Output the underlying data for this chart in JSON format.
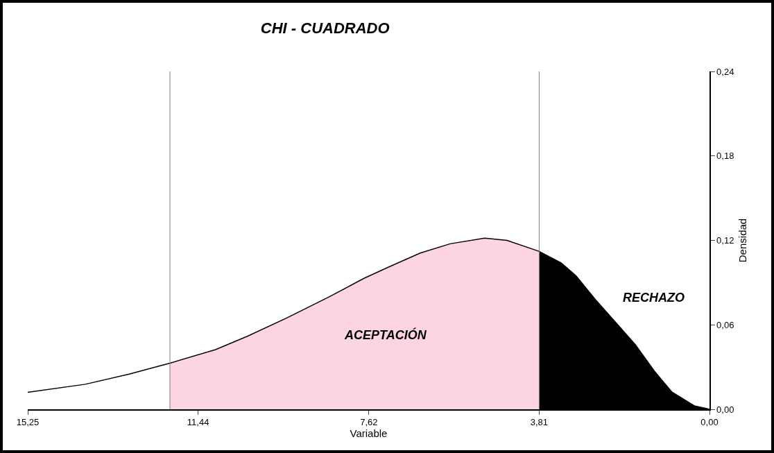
{
  "chart_data": {
    "type": "line",
    "title": "CHI - CUADRADO",
    "xlabel": "Variable",
    "ylabel": "Densidad",
    "xlim": [
      15.25,
      0
    ],
    "xticks": [
      {
        "value": 15.25,
        "label": "15,25"
      },
      {
        "value": 11.44,
        "label": "11,44"
      },
      {
        "value": 7.62,
        "label": "7,62"
      },
      {
        "value": 3.81,
        "label": "3,81"
      },
      {
        "value": 0,
        "label": "0,00"
      }
    ],
    "ylim": [
      0,
      0.24
    ],
    "yticks": [
      {
        "value": 0,
        "label": "0,00"
      },
      {
        "value": 0.06,
        "label": "0,06"
      },
      {
        "value": 0.12,
        "label": "0,12"
      },
      {
        "value": 0.18,
        "label": "0,18"
      },
      {
        "value": 0.24,
        "label": "0,24"
      }
    ],
    "marker": "none",
    "line_style": "solid",
    "series": [
      {
        "type": "area",
        "color": "#fcd4e2",
        "x": [
          12.07,
          11.05,
          10.33,
          9.45,
          8.5,
          7.73,
          7.18,
          6.47,
          5.8,
          5.03,
          4.53,
          3.81
        ],
        "values": [
          0.0328,
          0.0424,
          0.052,
          0.065,
          0.08,
          0.093,
          0.101,
          0.111,
          0.1176,
          0.1216,
          0.12,
          0.1122
        ]
      },
      {
        "type": "area",
        "color": "#000000",
        "x": [
          3.81,
          3.32,
          2.99,
          2.54,
          2.05,
          1.66,
          1.23,
          0.84,
          0.34,
          0.06,
          0
        ],
        "values": [
          0.1122,
          0.104,
          0.095,
          0.0775,
          0.06,
          0.046,
          0.027,
          0.0122,
          0.0025,
          0.0005,
          0
        ]
      },
      {
        "type": "line",
        "color": "#000000",
        "x": [
          15.25,
          13.96,
          12.98,
          12.07,
          11.05,
          10.33,
          9.45,
          8.5,
          7.73,
          7.18,
          6.47,
          5.8,
          5.03,
          4.53,
          3.81,
          3.32,
          2.99,
          2.54,
          2.05,
          1.66,
          1.23,
          0.84,
          0.34,
          0.06,
          0
        ],
        "values": [
          0.0121,
          0.0178,
          0.025,
          0.0328,
          0.0424,
          0.052,
          0.065,
          0.08,
          0.093,
          0.101,
          0.111,
          0.1176,
          0.1216,
          0.12,
          0.1122,
          0.104,
          0.095,
          0.0775,
          0.06,
          0.046,
          0.027,
          0.0122,
          0.0025,
          0.0005,
          0
        ]
      }
    ],
    "ref_lines": [
      {
        "axis": "x",
        "value": 12.07,
        "color": "#7f7f7f"
      },
      {
        "axis": "x",
        "value": 3.81,
        "color": "#7f7f7f"
      }
    ],
    "annotations": [
      "ACEPTACIÓN",
      "RECHAZO"
    ]
  }
}
